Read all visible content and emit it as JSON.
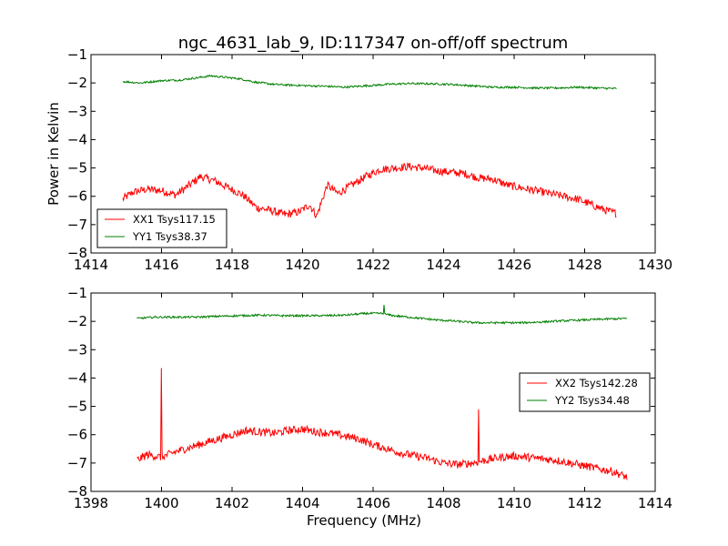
{
  "title": "ngc_4631_lab_9, ID:117347 on-off/off spectrum",
  "colors": {
    "xx": "#ff0000",
    "yy": "#008000",
    "frame": "#000000"
  },
  "chart_data": [
    {
      "type": "line",
      "xlabel": "",
      "ylabel": "Power in Kelvin",
      "xlim": [
        1414,
        1430
      ],
      "ylim": [
        -8,
        -1
      ],
      "xticks": [
        "1414",
        "1416",
        "1418",
        "1420",
        "1422",
        "1424",
        "1426",
        "1428",
        "1430"
      ],
      "yticks": [
        "−8",
        "−7",
        "−6",
        "−5",
        "−4",
        "−3",
        "−2",
        "−1"
      ],
      "legend_position": "lower-left",
      "series": [
        {
          "name": "XX1 Tsys117.15",
          "color": "#ff0000",
          "x": [
            1414.9,
            1415.2,
            1415.6,
            1416.0,
            1416.4,
            1416.8,
            1417.1,
            1417.5,
            1417.9,
            1418.3,
            1418.7,
            1419.1,
            1419.5,
            1419.9,
            1420.2,
            1420.4,
            1420.7,
            1421.0,
            1421.4,
            1421.8,
            1422.2,
            1422.6,
            1423.0,
            1423.4,
            1423.8,
            1424.2,
            1424.6,
            1425.0,
            1425.4,
            1425.8,
            1426.2,
            1426.6,
            1427.0,
            1427.4,
            1427.8,
            1428.2,
            1428.6,
            1428.9
          ],
          "y": [
            -6.1,
            -5.85,
            -5.75,
            -5.8,
            -5.95,
            -5.6,
            -5.3,
            -5.45,
            -5.7,
            -5.95,
            -6.4,
            -6.5,
            -6.65,
            -6.55,
            -6.3,
            -6.7,
            -5.6,
            -5.9,
            -5.6,
            -5.3,
            -5.05,
            -5.0,
            -4.95,
            -5.0,
            -5.1,
            -5.15,
            -5.2,
            -5.35,
            -5.4,
            -5.6,
            -5.7,
            -5.8,
            -5.9,
            -6.0,
            -6.1,
            -6.3,
            -6.5,
            -6.6
          ]
        },
        {
          "name": "YY1 Tsys38.37",
          "color": "#008000",
          "x": [
            1414.9,
            1415.4,
            1416.0,
            1416.5,
            1417.0,
            1417.4,
            1417.8,
            1418.2,
            1418.7,
            1419.2,
            1419.7,
            1420.2,
            1420.7,
            1421.2,
            1421.8,
            1422.4,
            1423.0,
            1423.6,
            1424.2,
            1424.8,
            1425.4,
            1426.0,
            1426.6,
            1427.2,
            1427.8,
            1428.4,
            1428.9
          ],
          "y": [
            -1.95,
            -2.0,
            -1.92,
            -1.9,
            -1.82,
            -1.75,
            -1.8,
            -1.85,
            -1.98,
            -2.05,
            -2.08,
            -2.1,
            -2.12,
            -2.15,
            -2.1,
            -2.05,
            -2.02,
            -2.03,
            -2.05,
            -2.1,
            -2.15,
            -2.15,
            -2.18,
            -2.18,
            -2.15,
            -2.18,
            -2.2
          ]
        }
      ]
    },
    {
      "type": "line",
      "xlabel": "Frequency (MHz)",
      "ylabel": "",
      "xlim": [
        1398,
        1414
      ],
      "ylim": [
        -8,
        -1
      ],
      "xticks": [
        "1398",
        "1400",
        "1402",
        "1404",
        "1406",
        "1408",
        "1410",
        "1412",
        "1414"
      ],
      "yticks": [
        "−8",
        "−7",
        "−6",
        "−5",
        "−4",
        "−3",
        "−2",
        "−1"
      ],
      "legend_position": "center-right",
      "series": [
        {
          "name": "XX2 Tsys142.28",
          "color": "#ff0000",
          "x": [
            1399.3,
            1399.6,
            1400.0,
            1400.4,
            1400.8,
            1401.2,
            1401.6,
            1402.0,
            1402.4,
            1402.8,
            1403.2,
            1403.6,
            1404.0,
            1404.4,
            1404.8,
            1405.2,
            1405.6,
            1406.0,
            1406.4,
            1406.8,
            1407.2,
            1407.6,
            1408.0,
            1408.4,
            1408.8,
            1409.2,
            1409.6,
            1410.0,
            1410.4,
            1410.8,
            1411.2,
            1411.6,
            1412.0,
            1412.4,
            1412.8,
            1413.2
          ],
          "y": [
            -6.9,
            -6.7,
            -6.8,
            -6.6,
            -6.45,
            -6.3,
            -6.15,
            -6.0,
            -5.85,
            -5.9,
            -5.95,
            -5.85,
            -5.8,
            -5.9,
            -5.95,
            -6.05,
            -6.15,
            -6.35,
            -6.5,
            -6.65,
            -6.75,
            -6.85,
            -7.0,
            -7.05,
            -7.0,
            -6.9,
            -6.8,
            -6.75,
            -6.8,
            -6.85,
            -6.9,
            -7.0,
            -7.1,
            -7.2,
            -7.3,
            -7.5
          ],
          "spikes": [
            {
              "x": 1400.0,
              "y": -3.65
            },
            {
              "x": 1409.0,
              "y": -5.1
            }
          ]
        },
        {
          "name": "YY2 Tsys34.48",
          "color": "#008000",
          "x": [
            1399.3,
            1399.8,
            1400.4,
            1401.0,
            1401.6,
            1402.2,
            1402.8,
            1403.4,
            1404.0,
            1404.6,
            1405.2,
            1405.8,
            1406.2,
            1406.6,
            1407.0,
            1407.4,
            1407.8,
            1408.2,
            1408.6,
            1409.0,
            1409.6,
            1410.2,
            1410.8,
            1411.4,
            1412.0,
            1412.6,
            1413.2
          ],
          "y": [
            -1.9,
            -1.85,
            -1.85,
            -1.85,
            -1.82,
            -1.8,
            -1.78,
            -1.8,
            -1.8,
            -1.8,
            -1.78,
            -1.72,
            -1.72,
            -1.8,
            -1.85,
            -1.9,
            -1.95,
            -1.98,
            -2.02,
            -2.05,
            -2.05,
            -2.05,
            -2.02,
            -1.98,
            -1.95,
            -1.92,
            -1.9
          ],
          "spikes": [
            {
              "x": 1406.3,
              "y": -1.42
            }
          ]
        }
      ]
    }
  ]
}
